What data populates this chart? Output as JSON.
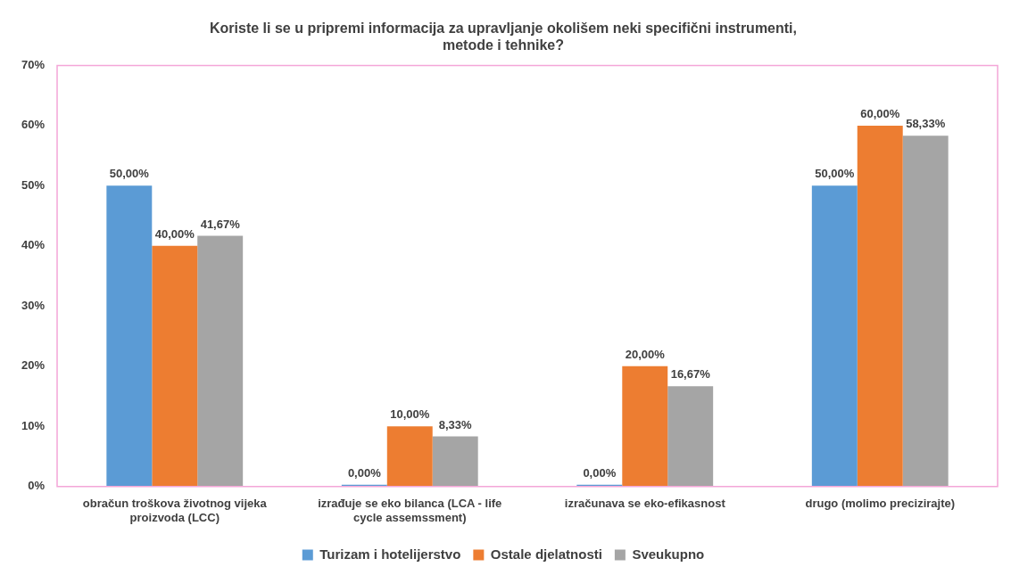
{
  "chart_data": {
    "type": "bar",
    "title": "Koriste li se u pripremi informacija za upravljanje okolišem neki specifični instrumenti, metode i tehnike?",
    "categories": [
      "obračun troškova životnog vijeka proizvoda (LCC)",
      "izrađuje se eko bilanca (LCA - life cycle assemssment)",
      "izračunava se eko-efikasnost",
      "drugo (molimo precizirajte)"
    ],
    "series": [
      {
        "name": "Turizam i hotelijerstvo",
        "color": "#5b9bd5",
        "values": [
          50,
          0,
          0,
          50
        ],
        "value_labels": [
          "50,00%",
          "0,00%",
          "0,00%",
          "50,00%"
        ]
      },
      {
        "name": "Ostale djelatnosti",
        "color": "#ed7d31",
        "values": [
          40,
          10,
          20,
          60
        ],
        "value_labels": [
          "40,00%",
          "10,00%",
          "20,00%",
          "60,00%"
        ]
      },
      {
        "name": "Sveukupno",
        "color": "#a5a5a5",
        "values": [
          41.67,
          8.33,
          16.67,
          58.33
        ],
        "value_labels": [
          "41,67%",
          "8,33%",
          "16,67%",
          "58,33%"
        ]
      }
    ],
    "ylim": [
      0,
      70
    ],
    "yticks": [
      {
        "value": 0,
        "label": "0%"
      },
      {
        "value": 10,
        "label": "10%"
      },
      {
        "value": 20,
        "label": "20%"
      },
      {
        "value": 30,
        "label": "30%"
      },
      {
        "value": 40,
        "label": "40%"
      },
      {
        "value": 50,
        "label": "50%"
      },
      {
        "value": 60,
        "label": "60%"
      },
      {
        "value": 70,
        "label": "70%"
      }
    ],
    "grid": false,
    "legend": "bottom"
  }
}
